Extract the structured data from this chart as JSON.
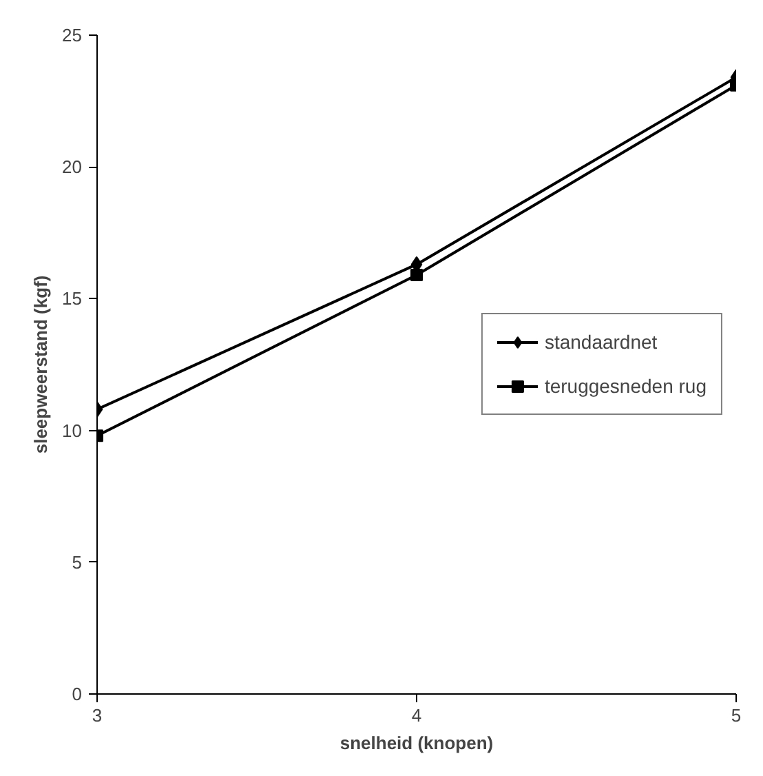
{
  "chart_data": {
    "type": "line",
    "xlabel": "snelheid (knopen)",
    "ylabel": "sleepweerstand (kgf)",
    "x": [
      3,
      4,
      5
    ],
    "xlim": [
      3,
      5
    ],
    "xticks": [
      3,
      4,
      5
    ],
    "ylim": [
      0,
      25
    ],
    "yticks": [
      0,
      5,
      10,
      15,
      20,
      25
    ],
    "grid": false,
    "legend": "right",
    "line_style": "solid",
    "series": [
      {
        "name": "standaardnet",
        "color": "#000000",
        "marker": "diamond",
        "values": [
          10.8,
          16.3,
          23.4
        ]
      },
      {
        "name": "teruggesneden rug",
        "color": "#000000",
        "marker": "square",
        "values": [
          9.8,
          15.9,
          23.1
        ]
      }
    ]
  }
}
